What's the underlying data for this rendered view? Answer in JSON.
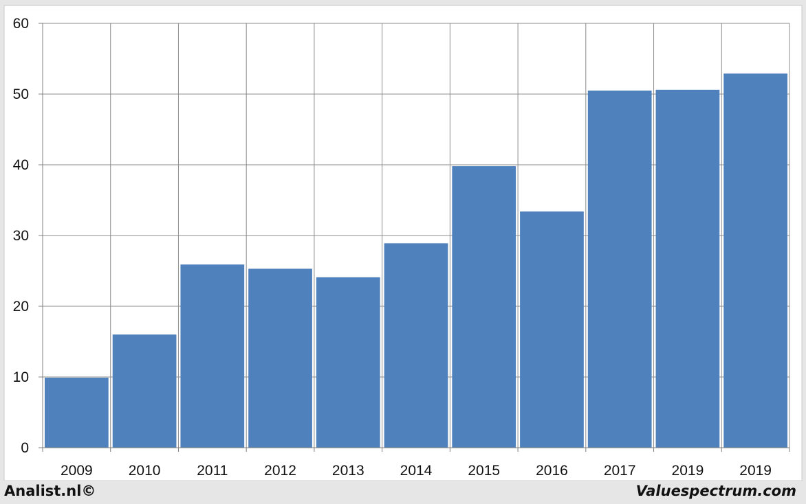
{
  "chart_data": {
    "type": "bar",
    "title": "",
    "xlabel": "",
    "ylabel": "",
    "categories": [
      "2009",
      "2010",
      "2011",
      "2012",
      "2013",
      "2014",
      "2015",
      "2016",
      "2017",
      "2019",
      "2019"
    ],
    "values": [
      9.9,
      16.0,
      25.9,
      25.3,
      24.1,
      28.9,
      39.8,
      33.4,
      50.5,
      50.6,
      52.9
    ],
    "yticks": [
      "0",
      "10",
      "20",
      "30",
      "40",
      "50",
      "60"
    ],
    "ylim": [
      0,
      60
    ],
    "grid": true,
    "legend": "none",
    "bar_color": "#4f81bd"
  },
  "footer": {
    "left_text": "Analist.nl©",
    "right_text": "Valuespectrum.com"
  }
}
